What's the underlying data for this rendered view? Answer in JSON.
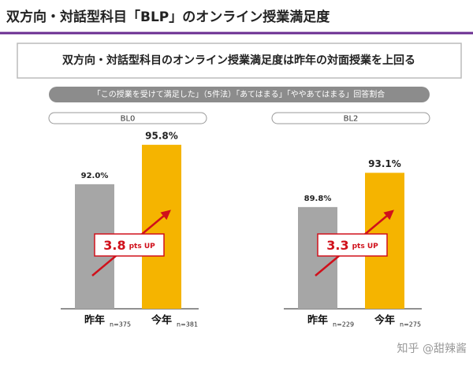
{
  "header": {
    "title": "双方向・対話型科目「BLP」のオンライン授業満足度"
  },
  "subtitle": "双方向・対話型科目のオンライン授業満足度は昨年の対面授業を上回る",
  "caption": "「この授業を受けて満足した」（5件法）「あてはまる」「ややあてはまる」回答割合",
  "watermark": "知乎 @甜辣酱",
  "chart_data": [
    {
      "type": "bar",
      "title": "BL0",
      "categories": [
        "昨年",
        "今年"
      ],
      "values": [
        92.0,
        95.8
      ],
      "value_labels": [
        "92.0%",
        "95.8%"
      ],
      "sample_sizes": [
        "n=375",
        "n=381"
      ],
      "colors": [
        "#a6a6a6",
        "#f5b400"
      ],
      "ylim": [
        80,
        97
      ],
      "annotation": {
        "number": "3.8",
        "unit": "pts UP"
      }
    },
    {
      "type": "bar",
      "title": "BL2",
      "categories": [
        "昨年",
        "今年"
      ],
      "values": [
        89.8,
        93.1
      ],
      "value_labels": [
        "89.8%",
        "93.1%"
      ],
      "sample_sizes": [
        "n=229",
        "n=275"
      ],
      "colors": [
        "#a6a6a6",
        "#f5b400"
      ],
      "ylim": [
        80,
        97
      ],
      "annotation": {
        "number": "3.3",
        "unit": "pts UP"
      }
    }
  ]
}
